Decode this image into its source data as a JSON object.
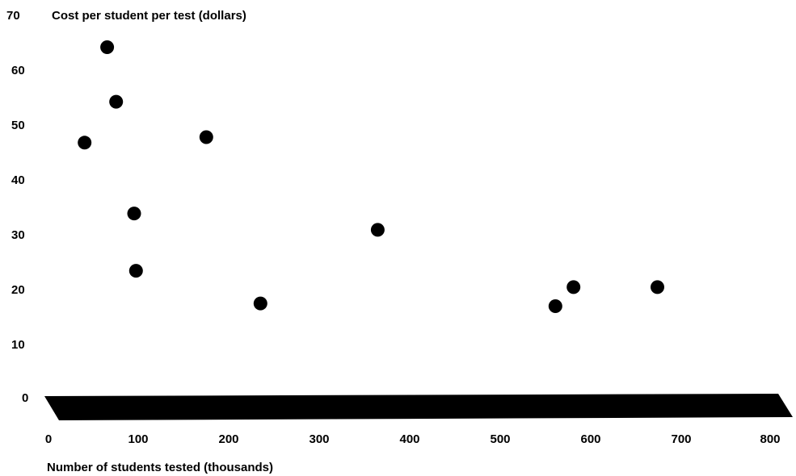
{
  "chart_data": {
    "type": "scatter",
    "title": "",
    "ylabel": "Cost per student per test (dollars)",
    "xlabel": "Number of students tested (thousands)",
    "xlim": [
      0,
      800
    ],
    "ylim": [
      0,
      70
    ],
    "x_ticks": [
      "0",
      "100",
      "200",
      "300",
      "400",
      "500",
      "600",
      "700",
      "800"
    ],
    "y_ticks": [
      "70",
      "60",
      "50",
      "40",
      "30",
      "20",
      "10",
      "0"
    ],
    "grid": false,
    "legend": "none",
    "marker_color": "#000000",
    "points": [
      {
        "x": 65,
        "y": 64
      },
      {
        "x": 75,
        "y": 54
      },
      {
        "x": 40,
        "y": 46.5
      },
      {
        "x": 175,
        "y": 47.5
      },
      {
        "x": 95,
        "y": 33.5
      },
      {
        "x": 97,
        "y": 23
      },
      {
        "x": 235,
        "y": 17
      },
      {
        "x": 365,
        "y": 30.5
      },
      {
        "x": 562,
        "y": 16.5
      },
      {
        "x": 582,
        "y": 20
      },
      {
        "x": 675,
        "y": 20
      }
    ]
  }
}
